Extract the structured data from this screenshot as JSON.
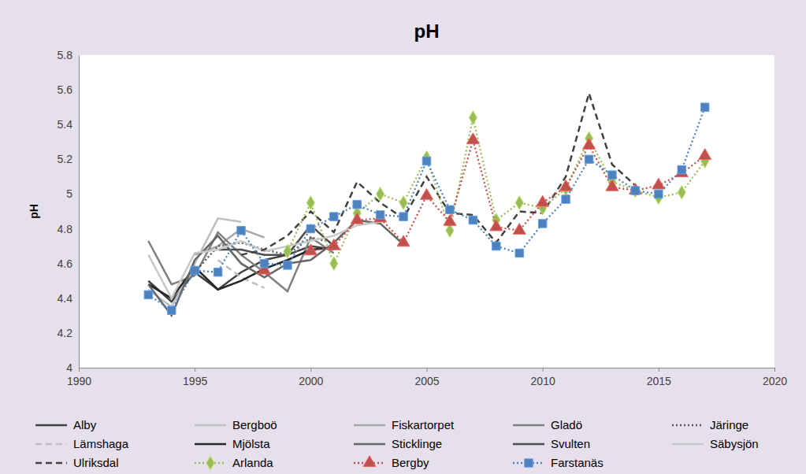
{
  "chart_data": {
    "type": "line",
    "title": "pH",
    "y_label": "pH",
    "x": [
      1993,
      1994,
      1995,
      1996,
      1997,
      1998,
      1999,
      2000,
      2001,
      2002,
      2003,
      2004,
      2005,
      2006,
      2007,
      2008,
      2009,
      2010,
      2011,
      2012,
      2013,
      2014,
      2015,
      2016,
      2017
    ],
    "xlim": [
      1990,
      2020
    ],
    "xticks": [
      1990,
      1995,
      2000,
      2005,
      2010,
      2015,
      2020
    ],
    "ylim": [
      4,
      5.8
    ],
    "yticks": [
      4,
      4.2,
      4.4,
      4.6,
      4.8,
      5,
      5.2,
      5.4,
      5.6,
      5.8
    ],
    "grid": false,
    "legend": "bottom",
    "series": [
      {
        "name": "Alby",
        "color": "#404040",
        "line_style": "solid",
        "values": [
          4.5,
          4.38,
          4.55,
          4.45,
          4.55,
          4.62,
          4.65,
          4.7,
          4.68,
          null,
          null,
          null,
          null,
          null,
          null,
          null,
          null,
          null,
          null,
          null,
          null,
          null,
          null,
          null,
          null
        ]
      },
      {
        "name": "Bergboö",
        "color": "#bfbfbf",
        "line_style": "solid",
        "values": [
          4.45,
          4.35,
          4.6,
          4.86,
          4.84,
          null,
          null,
          null,
          null,
          null,
          null,
          null,
          null,
          null,
          null,
          null,
          null,
          null,
          null,
          null,
          null,
          null,
          null,
          null,
          null
        ]
      },
      {
        "name": "Fiskartorpet",
        "color": "#a6a6a6",
        "line_style": "solid",
        "values": [
          null,
          null,
          4.65,
          4.7,
          4.8,
          4.75,
          null,
          null,
          null,
          null,
          null,
          null,
          null,
          null,
          null,
          null,
          null,
          null,
          null,
          null,
          null,
          null,
          null,
          null,
          null
        ]
      },
      {
        "name": "Gladö",
        "color": "#7f7f7f",
        "line_style": "solid",
        "values": [
          4.73,
          4.48,
          4.53,
          4.78,
          4.65,
          4.55,
          4.44,
          4.75,
          4.66,
          null,
          null,
          null,
          null,
          null,
          null,
          null,
          null,
          null,
          null,
          null,
          null,
          null,
          null,
          null,
          null
        ]
      },
      {
        "name": "Järinge",
        "color": "#595959",
        "line_style": "dotted",
        "values": [
          null,
          null,
          4.55,
          4.7,
          4.72,
          4.68,
          4.65,
          4.75,
          4.72,
          null,
          null,
          null,
          null,
          null,
          null,
          null,
          null,
          null,
          null,
          null,
          null,
          null,
          null,
          null,
          null
        ]
      },
      {
        "name": "Lämshaga",
        "color": "#bfbfbf",
        "line_style": "dashed",
        "values": [
          null,
          null,
          null,
          4.62,
          4.52,
          4.46,
          null,
          null,
          null,
          null,
          null,
          null,
          null,
          null,
          null,
          null,
          null,
          null,
          null,
          null,
          null,
          null,
          null,
          null,
          null
        ]
      },
      {
        "name": "Mjölsta",
        "color": "#262626",
        "line_style": "solid",
        "values": [
          4.48,
          4.4,
          4.58,
          4.45,
          4.5,
          4.57,
          4.62,
          4.68,
          4.69,
          null,
          null,
          null,
          null,
          null,
          null,
          null,
          null,
          null,
          null,
          null,
          null,
          null,
          null,
          null,
          null
        ]
      },
      {
        "name": "Sticklinge",
        "color": "#666666",
        "line_style": "solid",
        "values": [
          4.48,
          4.3,
          4.62,
          4.76,
          4.6,
          4.52,
          4.6,
          4.62,
          4.72,
          4.85,
          4.83,
          4.71,
          null,
          null,
          null,
          null,
          null,
          null,
          null,
          null,
          null,
          null,
          null,
          null,
          null
        ]
      },
      {
        "name": "Svulten",
        "color": "#4d4d4d",
        "line_style": "solid",
        "values": [
          null,
          null,
          null,
          4.68,
          4.68,
          4.65,
          4.65,
          4.82,
          4.7,
          null,
          null,
          null,
          null,
          null,
          null,
          null,
          null,
          null,
          null,
          null,
          null,
          null,
          null,
          null,
          null
        ]
      },
      {
        "name": "Säbysjön",
        "color": "#c8c8c8",
        "line_style": "solid",
        "values": [
          4.65,
          4.4,
          4.66,
          4.68,
          4.73,
          4.67,
          4.7,
          4.73,
          4.76,
          4.82,
          4.84,
          null,
          null,
          null,
          null,
          null,
          null,
          null,
          null,
          null,
          null,
          null,
          null,
          null,
          null
        ]
      },
      {
        "name": "Ulriksdal",
        "color": "#404040",
        "line_style": "dashed",
        "values": [
          null,
          null,
          null,
          null,
          4.65,
          4.68,
          4.76,
          4.9,
          4.78,
          5.07,
          4.95,
          4.86,
          5.1,
          4.89,
          4.88,
          4.72,
          4.9,
          4.89,
          5.1,
          5.58,
          5.17,
          5.05,
          null,
          null,
          null
        ]
      },
      {
        "name": "Arlanda",
        "color": "#9bbb59",
        "line_style": "dotted",
        "marker": "diamond",
        "values": [
          null,
          null,
          null,
          null,
          null,
          null,
          4.67,
          4.95,
          4.6,
          4.89,
          5.0,
          4.95,
          5.21,
          4.79,
          5.44,
          4.85,
          4.95,
          4.92,
          5.03,
          5.32,
          5.07,
          5.02,
          4.98,
          5.01,
          5.19
        ]
      },
      {
        "name": "Bergby",
        "color": "#c0504d",
        "line_style": "dotted",
        "marker": "triangle",
        "values": [
          null,
          null,
          null,
          null,
          null,
          4.56,
          null,
          4.67,
          4.7,
          4.85,
          4.86,
          4.72,
          4.99,
          4.84,
          5.31,
          4.81,
          4.79,
          4.95,
          5.04,
          5.28,
          5.04,
          5.02,
          5.05,
          5.12,
          5.22
        ]
      },
      {
        "name": "Farstanäs",
        "color": "#4f81bd",
        "line_style": "dotted",
        "marker": "square",
        "values": [
          4.42,
          4.33,
          4.56,
          4.55,
          4.79,
          4.6,
          4.59,
          4.8,
          4.87,
          4.94,
          4.88,
          4.87,
          5.19,
          4.91,
          4.85,
          4.7,
          4.66,
          4.83,
          4.97,
          5.2,
          5.11,
          5.02,
          5.0,
          5.14,
          5.5
        ]
      }
    ]
  }
}
